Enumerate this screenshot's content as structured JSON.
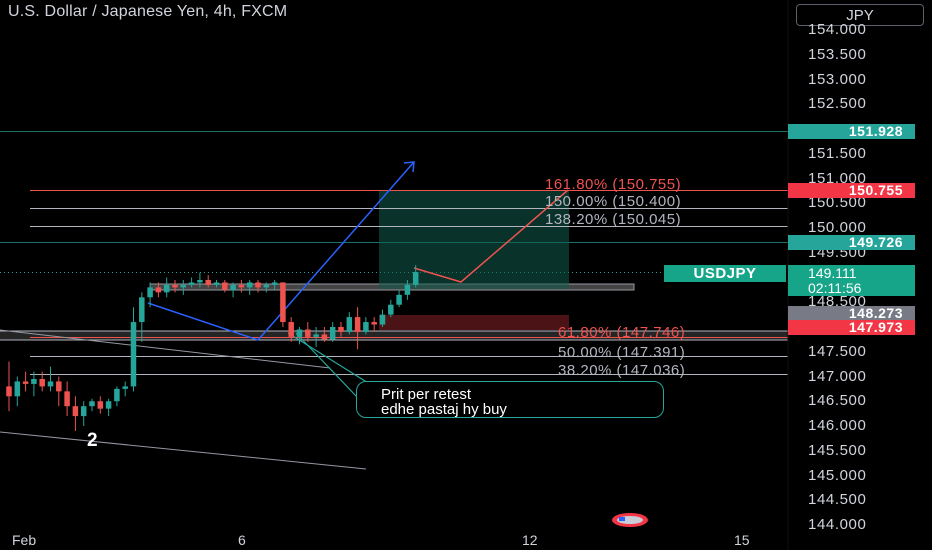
{
  "title": "U.S. Dollar / Japanese Yen, 4h, FXCM",
  "currency": "JPY",
  "y_ticks": [
    "154.000",
    "153.500",
    "153.000",
    "152.500",
    "151.500",
    "151.000",
    "150.500",
    "150.000",
    "149.500",
    "148.500",
    "147.500",
    "147.000",
    "146.500",
    "146.000",
    "145.500",
    "145.000",
    "144.500",
    "144.000"
  ],
  "x_ticks": [
    "Feb",
    "6",
    "12",
    "15"
  ],
  "price_tags": {
    "t151928": "151.928",
    "t150755": "150.755",
    "t149726": "149.726",
    "t148273": "148.273",
    "t147973": "147.973"
  },
  "symbol_tag": "USDJPY",
  "current_price": "149.111",
  "countdown": "02:11:56",
  "fib_labels": {
    "f1618": "161.80% (150.755)",
    "f1500": "150.00% (150.400)",
    "f1382": "138.20% (150.045)",
    "f0618": "61.80% (147.746)",
    "f0500": "50.00% (147.391)",
    "f0382": "38.20% (147.036)"
  },
  "note_line1": "Prit per retest",
  "note_line2": "edhe pastaj hy buy",
  "wave_label": "2",
  "colors": {
    "up": "#26a69a",
    "down": "#ef5350",
    "bg": "#000000",
    "fib_red": "#ef5350",
    "fib_gray": "#b2b5be",
    "blue": "#2962ff",
    "green_tag": "#26a69a",
    "red_tag": "#f23645",
    "gray_tag": "#787b86"
  },
  "chart_data": {
    "type": "candlestick",
    "title": "U.S. Dollar / Japanese Yen, 4h, FXCM",
    "xlabel": "",
    "ylabel": "",
    "ylim": [
      144.0,
      154.0
    ],
    "x_ticks": [
      "Feb",
      "6",
      "12",
      "15"
    ],
    "current_price": 149.111,
    "horizontal_levels": [
      151.928,
      150.755,
      149.726,
      148.273,
      147.973
    ],
    "fib_levels": [
      {
        "ratio": "161.80%",
        "price": 150.755
      },
      {
        "ratio": "150.00%",
        "price": 150.4
      },
      {
        "ratio": "138.20%",
        "price": 150.045
      },
      {
        "ratio": "61.80%",
        "price": 147.746
      },
      {
        "ratio": "50.00%",
        "price": 147.391
      },
      {
        "ratio": "38.20%",
        "price": 147.036
      }
    ],
    "candles": [
      {
        "o": 146.8,
        "h": 147.3,
        "l": 146.3,
        "c": 146.6
      },
      {
        "o": 146.6,
        "h": 147.0,
        "l": 146.4,
        "c": 146.9
      },
      {
        "o": 146.9,
        "h": 147.1,
        "l": 146.7,
        "c": 146.85
      },
      {
        "o": 146.85,
        "h": 147.1,
        "l": 146.6,
        "c": 146.95
      },
      {
        "o": 146.95,
        "h": 147.1,
        "l": 146.7,
        "c": 146.8
      },
      {
        "o": 146.8,
        "h": 147.2,
        "l": 146.7,
        "c": 146.9
      },
      {
        "o": 146.9,
        "h": 147.0,
        "l": 146.4,
        "c": 146.7
      },
      {
        "o": 146.7,
        "h": 146.9,
        "l": 146.2,
        "c": 146.4
      },
      {
        "o": 146.4,
        "h": 146.6,
        "l": 145.9,
        "c": 146.2
      },
      {
        "o": 146.2,
        "h": 146.5,
        "l": 146.0,
        "c": 146.4
      },
      {
        "o": 146.4,
        "h": 146.55,
        "l": 146.3,
        "c": 146.5
      },
      {
        "o": 146.5,
        "h": 146.6,
        "l": 146.25,
        "c": 146.35
      },
      {
        "o": 146.35,
        "h": 146.55,
        "l": 146.2,
        "c": 146.5
      },
      {
        "o": 146.5,
        "h": 146.8,
        "l": 146.4,
        "c": 146.75
      },
      {
        "o": 146.75,
        "h": 146.9,
        "l": 146.6,
        "c": 146.8
      },
      {
        "o": 146.8,
        "h": 148.4,
        "l": 146.7,
        "c": 148.1
      },
      {
        "o": 148.1,
        "h": 148.7,
        "l": 147.7,
        "c": 148.6
      },
      {
        "o": 148.6,
        "h": 148.9,
        "l": 148.4,
        "c": 148.8
      },
      {
        "o": 148.8,
        "h": 148.9,
        "l": 148.6,
        "c": 148.7
      },
      {
        "o": 148.7,
        "h": 149.0,
        "l": 148.6,
        "c": 148.85
      },
      {
        "o": 148.85,
        "h": 148.95,
        "l": 148.7,
        "c": 148.8
      },
      {
        "o": 148.8,
        "h": 148.95,
        "l": 148.65,
        "c": 148.85
      },
      {
        "o": 148.85,
        "h": 149.0,
        "l": 148.8,
        "c": 148.9
      },
      {
        "o": 148.9,
        "h": 149.1,
        "l": 148.8,
        "c": 148.95
      },
      {
        "o": 148.95,
        "h": 149.05,
        "l": 148.8,
        "c": 148.85
      },
      {
        "o": 148.85,
        "h": 148.95,
        "l": 148.8,
        "c": 148.9
      },
      {
        "o": 148.9,
        "h": 148.95,
        "l": 148.7,
        "c": 148.75
      },
      {
        "o": 148.75,
        "h": 148.9,
        "l": 148.6,
        "c": 148.85
      },
      {
        "o": 148.85,
        "h": 148.95,
        "l": 148.7,
        "c": 148.8
      },
      {
        "o": 148.8,
        "h": 148.95,
        "l": 148.65,
        "c": 148.9
      },
      {
        "o": 148.9,
        "h": 148.95,
        "l": 148.7,
        "c": 148.8
      },
      {
        "o": 148.8,
        "h": 148.9,
        "l": 148.7,
        "c": 148.85
      },
      {
        "o": 148.85,
        "h": 148.95,
        "l": 148.75,
        "c": 148.9
      },
      {
        "o": 148.9,
        "h": 148.9,
        "l": 148.0,
        "c": 148.1
      },
      {
        "o": 148.1,
        "h": 148.2,
        "l": 147.7,
        "c": 147.8
      },
      {
        "o": 147.8,
        "h": 148.0,
        "l": 147.65,
        "c": 147.95
      },
      {
        "o": 147.95,
        "h": 148.1,
        "l": 147.7,
        "c": 147.8
      },
      {
        "o": 147.8,
        "h": 148.0,
        "l": 147.6,
        "c": 147.85
      },
      {
        "o": 147.85,
        "h": 148.0,
        "l": 147.7,
        "c": 147.75
      },
      {
        "o": 147.75,
        "h": 148.1,
        "l": 147.7,
        "c": 148.0
      },
      {
        "o": 148.0,
        "h": 148.1,
        "l": 147.8,
        "c": 147.9
      },
      {
        "o": 147.9,
        "h": 148.3,
        "l": 147.85,
        "c": 148.2
      },
      {
        "o": 148.2,
        "h": 148.4,
        "l": 147.55,
        "c": 147.9
      },
      {
        "o": 147.9,
        "h": 148.2,
        "l": 147.85,
        "c": 148.1
      },
      {
        "o": 148.1,
        "h": 148.2,
        "l": 147.9,
        "c": 148.05
      },
      {
        "o": 148.05,
        "h": 148.35,
        "l": 148.0,
        "c": 148.25
      },
      {
        "o": 148.25,
        "h": 148.55,
        "l": 148.2,
        "c": 148.45
      },
      {
        "o": 148.45,
        "h": 148.75,
        "l": 148.4,
        "c": 148.65
      },
      {
        "o": 148.65,
        "h": 148.95,
        "l": 148.55,
        "c": 148.85
      },
      {
        "o": 148.85,
        "h": 149.25,
        "l": 148.8,
        "c": 149.11
      }
    ]
  }
}
